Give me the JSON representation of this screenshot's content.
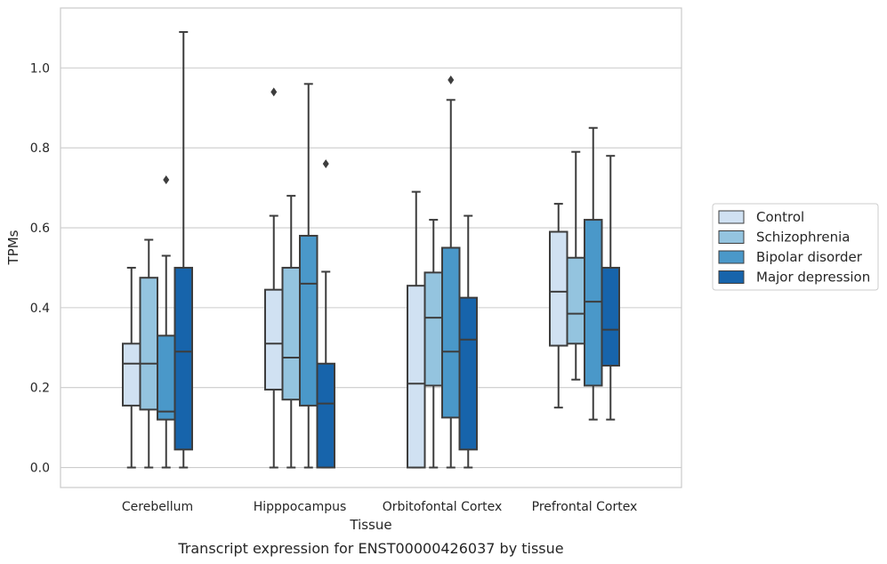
{
  "chart_data": {
    "type": "box",
    "xlabel": "Tissue",
    "ylabel": "TPMs",
    "caption": "Transcript expression for ENST00000426037 by tissue",
    "ylim": [
      -0.05,
      1.15
    ],
    "yticks": [
      0.0,
      0.2,
      0.4,
      0.6,
      0.8,
      1.0
    ],
    "ytick_labels": [
      "0.0",
      "0.2",
      "0.4",
      "0.6",
      "0.8",
      "1.0"
    ],
    "grid": "horizontal",
    "legend_position": "right",
    "categories": [
      "Cerebellum",
      "Hipppocampus",
      "Orbitofontal Cortex",
      "Prefrontal Cortex"
    ],
    "series": [
      {
        "name": "Control",
        "color": "#d0e1f2",
        "boxes": [
          {
            "whisker_low": 0.0,
            "q1": 0.155,
            "median": 0.26,
            "q3": 0.31,
            "whisker_high": 0.5,
            "outliers": []
          },
          {
            "whisker_low": 0.0,
            "q1": 0.195,
            "median": 0.31,
            "q3": 0.445,
            "whisker_high": 0.63,
            "outliers": [
              0.94
            ]
          },
          {
            "whisker_low": 0.0,
            "q1": 0.0,
            "median": 0.21,
            "q3": 0.455,
            "whisker_high": 0.69,
            "outliers": []
          },
          {
            "whisker_low": 0.15,
            "q1": 0.305,
            "median": 0.44,
            "q3": 0.59,
            "whisker_high": 0.66,
            "outliers": []
          }
        ]
      },
      {
        "name": "Schizophrenia",
        "color": "#94c4df",
        "boxes": [
          {
            "whisker_low": 0.0,
            "q1": 0.145,
            "median": 0.26,
            "q3": 0.475,
            "whisker_high": 0.57,
            "outliers": []
          },
          {
            "whisker_low": 0.0,
            "q1": 0.17,
            "median": 0.275,
            "q3": 0.5,
            "whisker_high": 0.68,
            "outliers": []
          },
          {
            "whisker_low": 0.0,
            "q1": 0.205,
            "median": 0.375,
            "q3": 0.488,
            "whisker_high": 0.62,
            "outliers": []
          },
          {
            "whisker_low": 0.22,
            "q1": 0.31,
            "median": 0.385,
            "q3": 0.525,
            "whisker_high": 0.79,
            "outliers": []
          }
        ]
      },
      {
        "name": "Bipolar disorder",
        "color": "#4a98c9",
        "boxes": [
          {
            "whisker_low": 0.0,
            "q1": 0.12,
            "median": 0.14,
            "q3": 0.33,
            "whisker_high": 0.53,
            "outliers": [
              0.72
            ]
          },
          {
            "whisker_low": 0.0,
            "q1": 0.155,
            "median": 0.46,
            "q3": 0.58,
            "whisker_high": 0.96,
            "outliers": []
          },
          {
            "whisker_low": 0.0,
            "q1": 0.125,
            "median": 0.29,
            "q3": 0.55,
            "whisker_high": 0.92,
            "outliers": [
              0.97
            ]
          },
          {
            "whisker_low": 0.12,
            "q1": 0.205,
            "median": 0.415,
            "q3": 0.62,
            "whisker_high": 0.85,
            "outliers": []
          }
        ]
      },
      {
        "name": "Major depression",
        "color": "#1764ab",
        "boxes": [
          {
            "whisker_low": 0.0,
            "q1": 0.045,
            "median": 0.29,
            "q3": 0.5,
            "whisker_high": 1.09,
            "outliers": []
          },
          {
            "whisker_low": 0.0,
            "q1": 0.0,
            "median": 0.16,
            "q3": 0.26,
            "whisker_high": 0.49,
            "outliers": [
              0.76
            ]
          },
          {
            "whisker_low": 0.0,
            "q1": 0.045,
            "median": 0.32,
            "q3": 0.425,
            "whisker_high": 0.63,
            "outliers": []
          },
          {
            "whisker_low": 0.12,
            "q1": 0.255,
            "median": 0.345,
            "q3": 0.5,
            "whisker_high": 0.78,
            "outliers": []
          }
        ]
      }
    ]
  }
}
